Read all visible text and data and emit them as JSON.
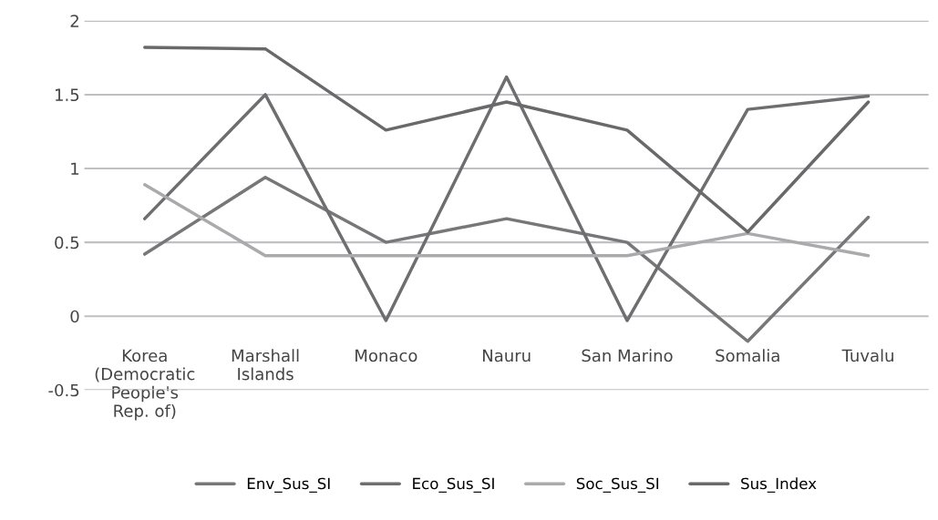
{
  "chart_data": {
    "type": "line",
    "categories": [
      "Korea\n(Democratic\nPeople's\nRep. of)",
      "Marshall\nIslands",
      "Monaco",
      "Nauru",
      "San Marino",
      "Somalia",
      "Tuvalu"
    ],
    "series": [
      {
        "name": "Env_Sus_SI",
        "color": "#77777a",
        "values": [
          0.42,
          0.94,
          0.5,
          0.66,
          0.5,
          -0.17,
          0.67
        ]
      },
      {
        "name": "Eco_Sus_SI",
        "color": "#6e6e70",
        "values": [
          0.66,
          1.5,
          -0.03,
          1.62,
          -0.03,
          1.4,
          1.49
        ]
      },
      {
        "name": "Soc_Sus_SI",
        "color": "#aaaaad",
        "values": [
          0.89,
          0.41,
          0.41,
          0.41,
          0.41,
          0.56,
          0.41
        ]
      },
      {
        "name": "Sus_Index",
        "color": "#69696b",
        "values": [
          1.82,
          1.81,
          1.26,
          1.45,
          1.26,
          0.57,
          1.45
        ]
      }
    ],
    "ylim": [
      -0.5,
      2
    ],
    "yticks": [
      -0.5,
      0,
      0.5,
      1,
      1.5,
      2
    ],
    "grid": "y",
    "legend": "bottom",
    "marker": "none",
    "line_style": "solid"
  }
}
